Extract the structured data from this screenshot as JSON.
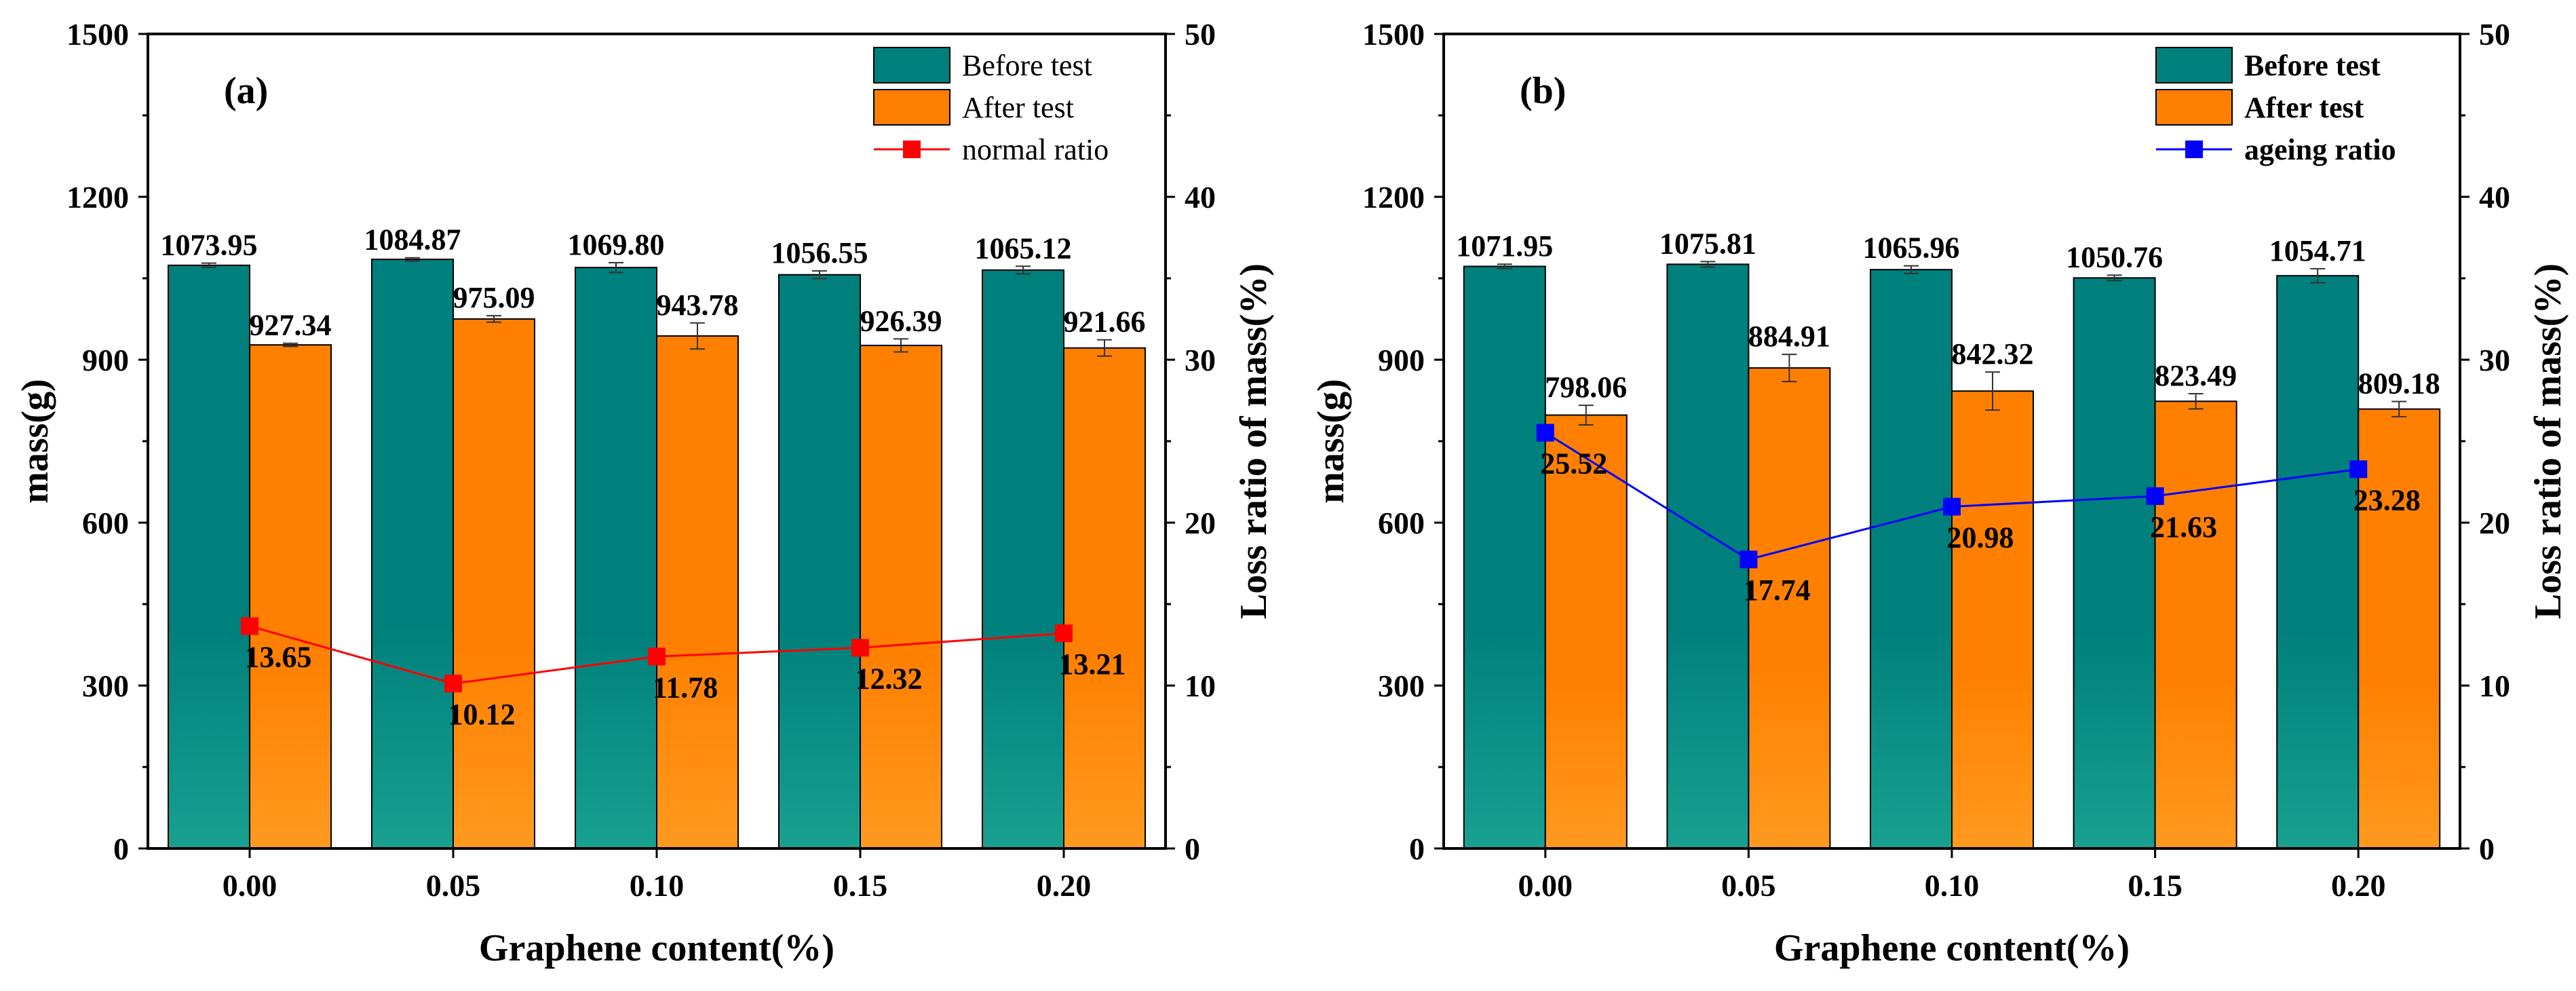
{
  "chart_data": [
    {
      "type": "bar",
      "panel_label": "(a)",
      "categories": [
        "0.00",
        "0.05",
        "0.10",
        "0.15",
        "0.20"
      ],
      "series": [
        {
          "name": "Before test",
          "kind": "bar",
          "axis": "left",
          "color": "#00807c",
          "values": [
            1073.95,
            1084.87,
            1069.8,
            1056.55,
            1065.12
          ],
          "labels": [
            "1073.95",
            "1084.87",
            "1069.80",
            "1056.55",
            "1065.12"
          ],
          "errors": [
            4,
            3,
            9,
            7,
            7
          ]
        },
        {
          "name": "After   test",
          "kind": "bar",
          "axis": "left",
          "color": "#ff8000",
          "values": [
            927.34,
            975.09,
            943.78,
            926.39,
            921.66
          ],
          "labels": [
            "927.34",
            "975.09",
            "943.78",
            "926.39",
            "921.66"
          ],
          "errors": [
            3,
            6,
            24,
            12,
            15
          ]
        },
        {
          "name": "normal ratio",
          "kind": "line",
          "axis": "right",
          "color": "#ff0000",
          "values": [
            13.65,
            10.12,
            11.78,
            12.32,
            13.21
          ],
          "labels": [
            "13.65",
            "10.12",
            "11.78",
            "12.32",
            "13.21"
          ]
        }
      ],
      "xlabel": "Graphene content(%)",
      "ylabel": "mass(g)",
      "y2label": "Loss ratio of mass(%)",
      "ylim": [
        0,
        1500
      ],
      "yticks": [
        "0",
        "300",
        "600",
        "900",
        "1200",
        "1500"
      ],
      "y2lim": [
        0,
        50
      ],
      "y2ticks": [
        "0",
        "10",
        "20",
        "30",
        "40",
        "50"
      ],
      "legend_bold": false
    },
    {
      "type": "bar",
      "panel_label": "(b)",
      "categories": [
        "0.00",
        "0.05",
        "0.10",
        "0.15",
        "0.20"
      ],
      "series": [
        {
          "name": "Before test",
          "kind": "bar",
          "axis": "left",
          "color": "#00807c",
          "values": [
            1071.95,
            1075.81,
            1065.96,
            1050.76,
            1054.71
          ],
          "labels": [
            "1071.95",
            "1075.81",
            "1065.96",
            "1050.76",
            "1054.71"
          ],
          "errors": [
            4,
            5,
            7,
            5,
            13
          ]
        },
        {
          "name": "After   test",
          "kind": "bar",
          "axis": "left",
          "color": "#ff8000",
          "values": [
            798.06,
            884.91,
            842.32,
            823.49,
            809.18
          ],
          "labels": [
            "798.06",
            "884.91",
            "842.32",
            "823.49",
            "809.18"
          ],
          "errors": [
            18,
            25,
            35,
            14,
            14
          ]
        },
        {
          "name": "ageing ratio",
          "kind": "line",
          "axis": "right",
          "color": "#0000ff",
          "values": [
            25.52,
            17.74,
            20.98,
            21.63,
            23.28
          ],
          "labels": [
            "25.52",
            "17.74",
            "20.98",
            "21.63",
            "23.28"
          ]
        }
      ],
      "xlabel": "Graphene content(%)",
      "ylabel": "mass(g)",
      "y2label": "Loss ratio of mass(%)",
      "ylim": [
        0,
        1500
      ],
      "yticks": [
        "0",
        "300",
        "600",
        "900",
        "1200",
        "1500"
      ],
      "y2lim": [
        0,
        50
      ],
      "y2ticks": [
        "0",
        "10",
        "20",
        "30",
        "40",
        "50"
      ],
      "legend_bold": true
    }
  ]
}
